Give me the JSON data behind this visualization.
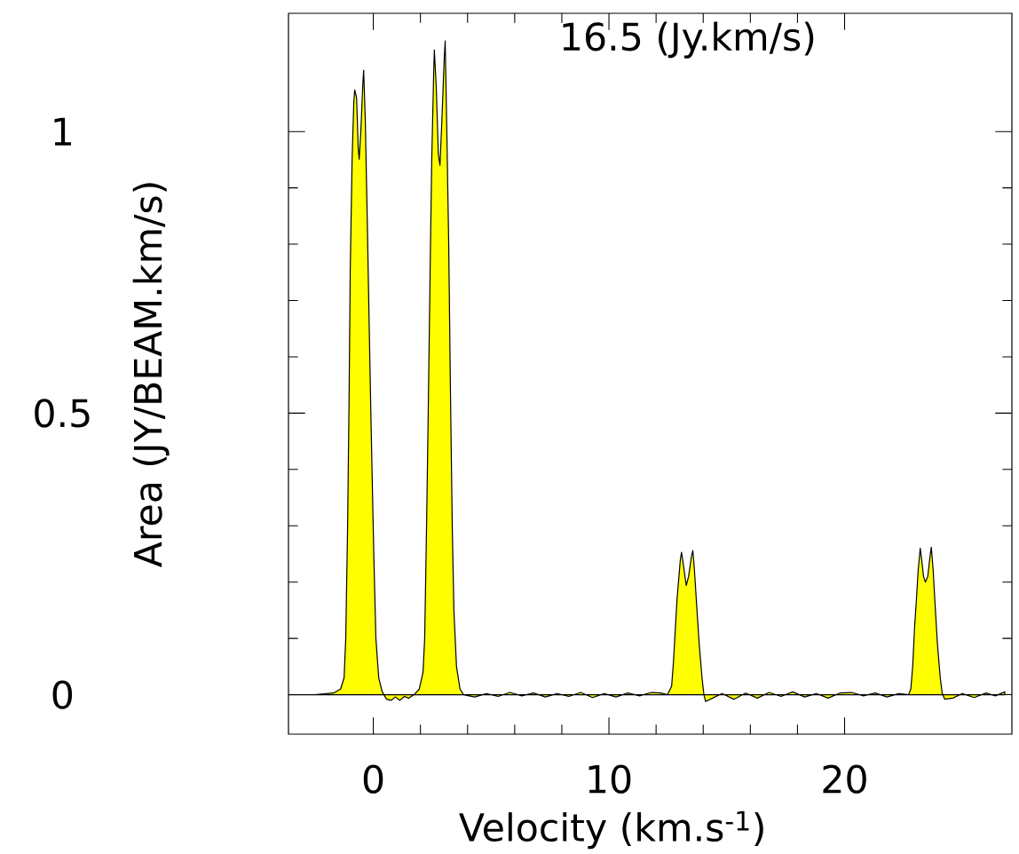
{
  "chart_data": {
    "type": "area",
    "xlabel": "Velocity (km.s$^{-1}$)",
    "ylabel": "Area (JY/BEAM.km/s)",
    "annotations": [
      "16.5 (Jy.km/s)"
    ],
    "xlim": [
      -3.6,
      27.1
    ],
    "ylim": [
      -0.07,
      1.21
    ],
    "xticks": [
      0,
      10,
      20
    ],
    "yticks": [
      0,
      0.5,
      1
    ],
    "series": [
      {
        "color": "#ffff00",
        "x": [
          -3.6,
          -2.5,
          -1.69,
          -1.39,
          -1.24,
          -1.17,
          -1.09,
          -1.03,
          -0.98,
          -0.9,
          -0.83,
          -0.79,
          -0.71,
          -0.64,
          -0.6,
          -0.53,
          -0.45,
          -0.41,
          -0.34,
          -0.26,
          -0.15,
          -0.08,
          0.02,
          0.11,
          0.23,
          0.38,
          0.56,
          0.75,
          0.94,
          1.13,
          1.32,
          1.5,
          1.73,
          1.95,
          2.11,
          2.18,
          2.26,
          2.33,
          2.41,
          2.48,
          2.56,
          2.59,
          2.67,
          2.76,
          2.83,
          2.91,
          3.01,
          3.05,
          3.12,
          3.2,
          3.27,
          3.35,
          3.42,
          3.53,
          3.68,
          3.83,
          4.3,
          4.8,
          5.3,
          5.8,
          6.3,
          6.8,
          7.3,
          7.8,
          8.3,
          8.8,
          9.3,
          9.8,
          10.3,
          10.8,
          11.3,
          11.8,
          12.2,
          12.48,
          12.66,
          12.74,
          12.82,
          12.89,
          12.97,
          13.03,
          13.08,
          13.16,
          13.28,
          13.38,
          13.5,
          13.56,
          13.63,
          13.72,
          13.83,
          13.95,
          14.03,
          14.1,
          14.4,
          14.8,
          15.3,
          15.8,
          16.3,
          16.8,
          17.3,
          17.8,
          18.3,
          18.8,
          19.3,
          19.8,
          20.3,
          20.8,
          21.3,
          21.8,
          22.3,
          22.71,
          22.81,
          22.89,
          22.97,
          23.05,
          23.12,
          23.21,
          23.27,
          23.35,
          23.43,
          23.53,
          23.61,
          23.68,
          23.76,
          23.84,
          23.94,
          24.06,
          24.14,
          24.25,
          24.6,
          25.0,
          25.5,
          26.0,
          26.4,
          26.8
        ],
        "values": [
          0.0,
          0.0,
          0.003,
          0.01,
          0.03,
          0.1,
          0.3,
          0.52,
          0.75,
          0.95,
          1.05,
          1.074,
          1.06,
          0.97,
          0.951,
          1.0,
          1.08,
          1.109,
          1.02,
          0.85,
          0.6,
          0.45,
          0.25,
          0.1,
          0.03,
          0.005,
          -0.008,
          -0.01,
          -0.004,
          -0.01,
          -0.003,
          -0.006,
          0.0,
          0.01,
          0.04,
          0.1,
          0.3,
          0.5,
          0.75,
          0.95,
          1.1,
          1.145,
          1.08,
          0.96,
          0.94,
          1.02,
          1.13,
          1.161,
          1.0,
          0.8,
          0.55,
          0.3,
          0.15,
          0.05,
          0.01,
          0.0,
          -0.004,
          0.002,
          -0.003,
          0.004,
          -0.002,
          0.003,
          -0.004,
          0.002,
          -0.003,
          0.004,
          -0.005,
          0.002,
          -0.004,
          0.003,
          -0.002,
          0.004,
          0.003,
          0.0,
          0.015,
          0.06,
          0.12,
          0.17,
          0.21,
          0.24,
          0.253,
          0.23,
          0.194,
          0.21,
          0.245,
          0.256,
          0.22,
          0.16,
          0.09,
          0.03,
          0.0,
          -0.012,
          -0.006,
          0.002,
          -0.008,
          0.003,
          -0.006,
          0.004,
          -0.003,
          0.005,
          -0.004,
          0.002,
          -0.006,
          0.003,
          0.004,
          -0.002,
          0.003,
          -0.004,
          0.002,
          0.0,
          0.01,
          0.05,
          0.12,
          0.17,
          0.22,
          0.26,
          0.24,
          0.21,
          0.2,
          0.21,
          0.24,
          0.262,
          0.22,
          0.16,
          0.09,
          0.03,
          0.003,
          -0.008,
          -0.006,
          0.002,
          -0.005,
          0.003,
          -0.002,
          0.005
        ]
      }
    ]
  }
}
